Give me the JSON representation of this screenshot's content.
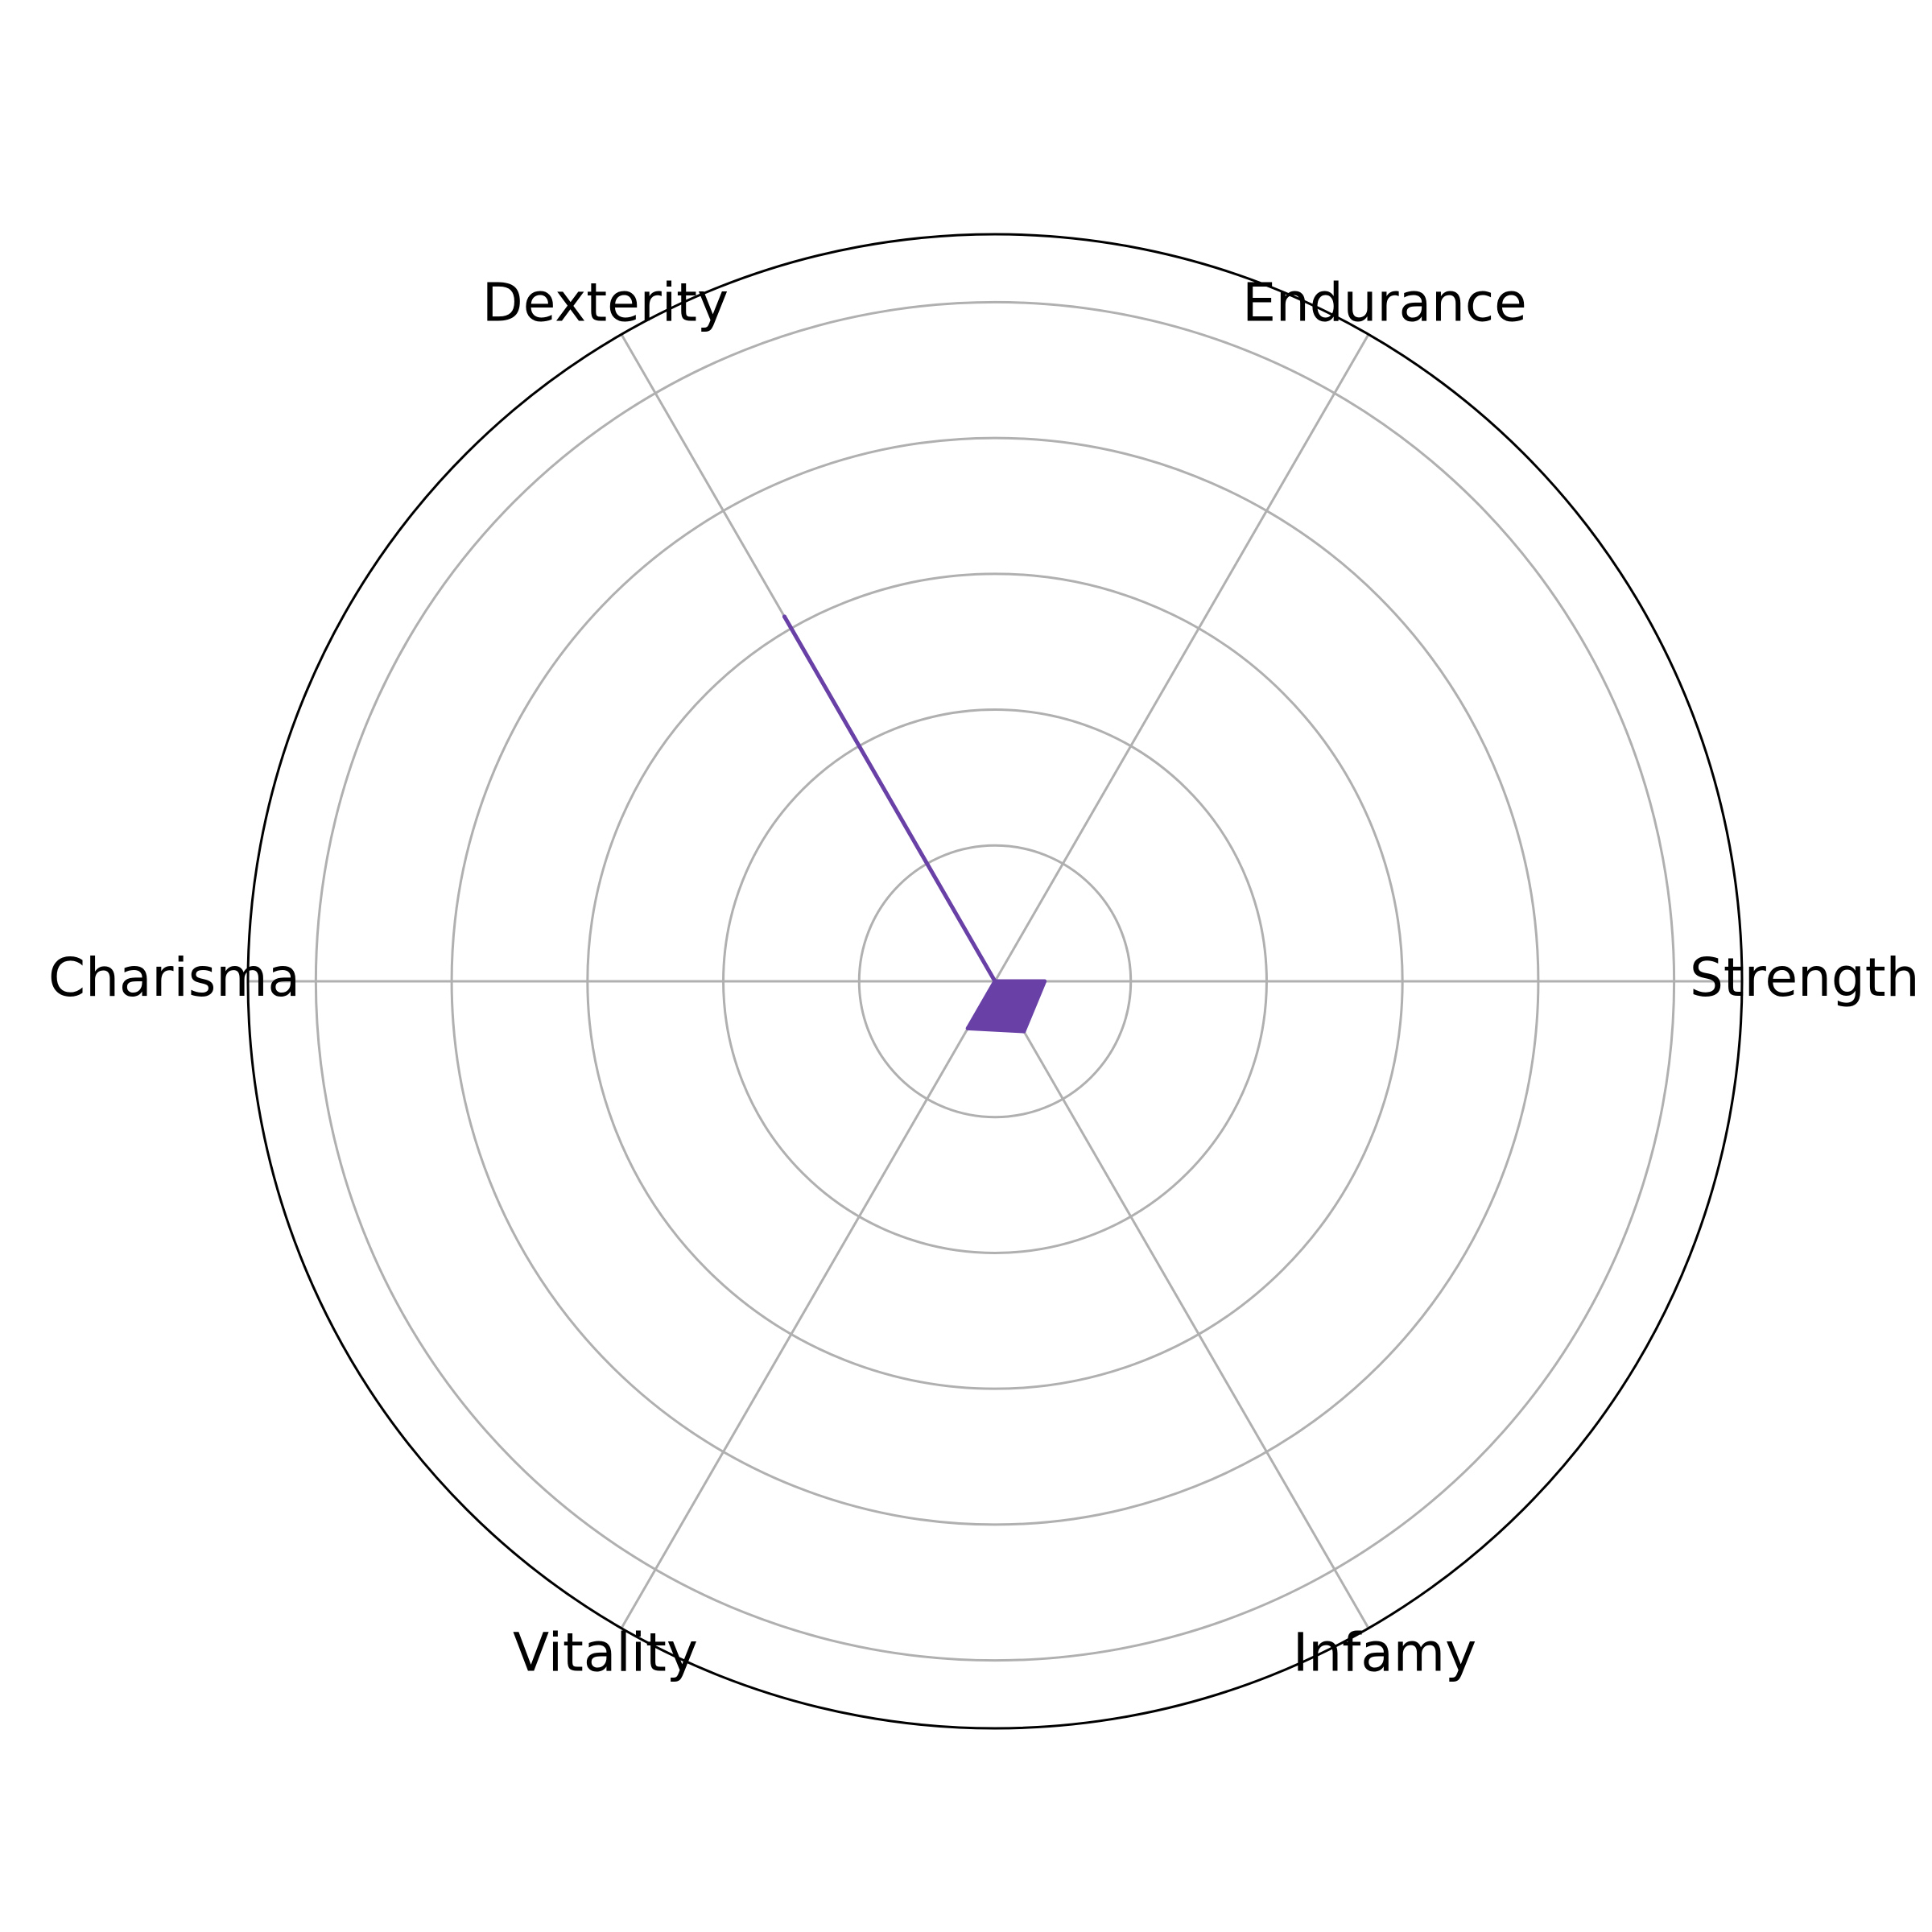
{
  "chart_data": {
    "type": "radar",
    "title": "",
    "categories": [
      "Strength",
      "Endurance",
      "Dexterity",
      "Charisma",
      "Vitality",
      "Infamy"
    ],
    "series": [
      {
        "values": [
          0.73,
          0.0,
          6.2,
          0.0,
          0.8,
          0.85
        ]
      }
    ],
    "rlim": [
      0,
      11
    ],
    "r_gridlines": [
      2,
      4,
      6,
      8,
      10
    ],
    "radial_tick_labels_visible": false,
    "grid": true,
    "legend": "none",
    "colors": {
      "series_fill": "#6941a6",
      "series_line": "#6941a6",
      "grid": "#b0b0b0",
      "outer_frame": "#000000"
    }
  }
}
